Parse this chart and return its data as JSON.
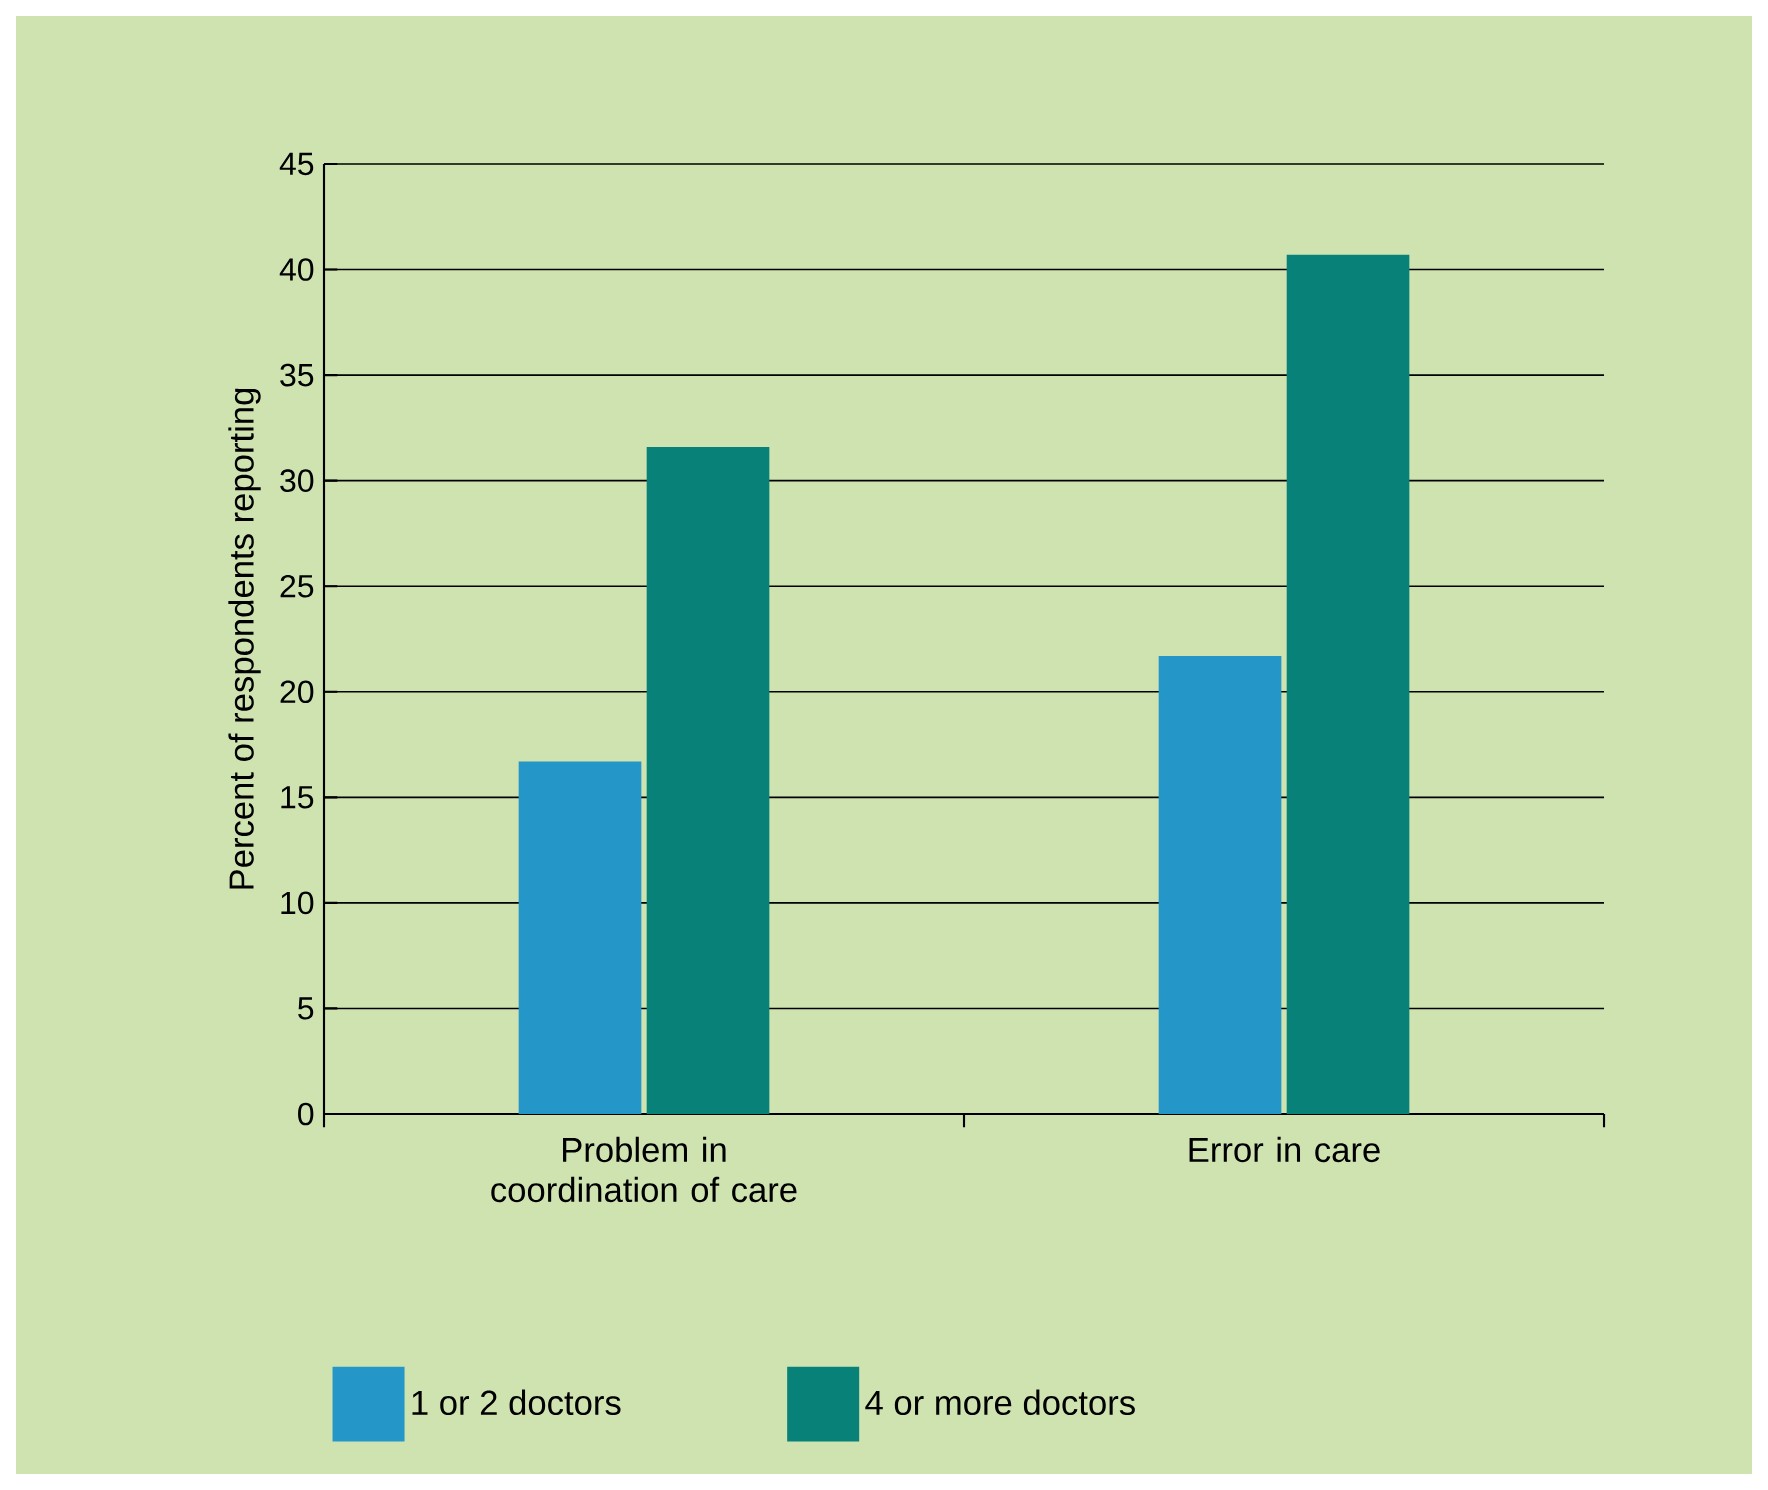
{
  "chart_data": {
    "type": "bar",
    "ylabel": "Percent of respondents reporting",
    "categories": [
      "Problem in coordination of care",
      "Error in care"
    ],
    "series": [
      {
        "name": "1 or 2 doctors",
        "color": "#2596c8",
        "values": [
          16.7,
          21.7
        ]
      },
      {
        "name": "4 or more doctors",
        "color": "#088279",
        "values": [
          31.6,
          40.7
        ]
      }
    ],
    "ylim": [
      0,
      45
    ],
    "yticks": [
      0,
      5,
      10,
      15,
      20,
      25,
      30,
      35,
      40,
      45
    ],
    "grid": "y",
    "legend": "bottom"
  }
}
